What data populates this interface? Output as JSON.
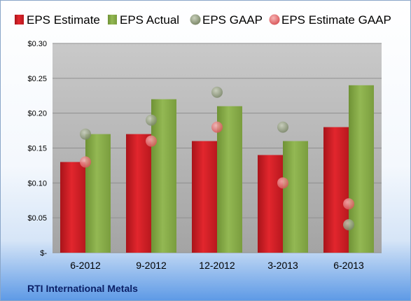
{
  "chart_data": {
    "type": "bar",
    "categories": [
      "6-2012",
      "9-2012",
      "12-2012",
      "3-2013",
      "6-2013"
    ],
    "series": [
      {
        "name": "EPS Estimate",
        "kind": "bar",
        "color": "#d9232a",
        "values": [
          0.13,
          0.17,
          0.16,
          0.14,
          0.18
        ]
      },
      {
        "name": "EPS Actual",
        "kind": "bar",
        "color": "#8cb04a",
        "values": [
          0.17,
          0.22,
          0.21,
          0.16,
          0.24
        ]
      },
      {
        "name": "EPS GAAP",
        "kind": "point",
        "color": "#9aa587",
        "values": [
          0.17,
          0.19,
          0.23,
          0.18,
          0.04
        ]
      },
      {
        "name": "EPS Estimate GAAP",
        "kind": "point",
        "color": "#e8787a",
        "values": [
          0.13,
          0.16,
          0.18,
          0.1,
          0.07
        ]
      }
    ],
    "ylim": [
      0,
      0.3
    ],
    "yticks": [
      0,
      0.05,
      0.1,
      0.15,
      0.2,
      0.25,
      0.3
    ],
    "ytick_labels": [
      "$-",
      "$0.05",
      "$0.10",
      "$0.15",
      "$0.20",
      "$0.25",
      "$0.30"
    ],
    "grid": true,
    "legend_position": "top"
  },
  "footer": {
    "company": "RTI International Metals"
  }
}
